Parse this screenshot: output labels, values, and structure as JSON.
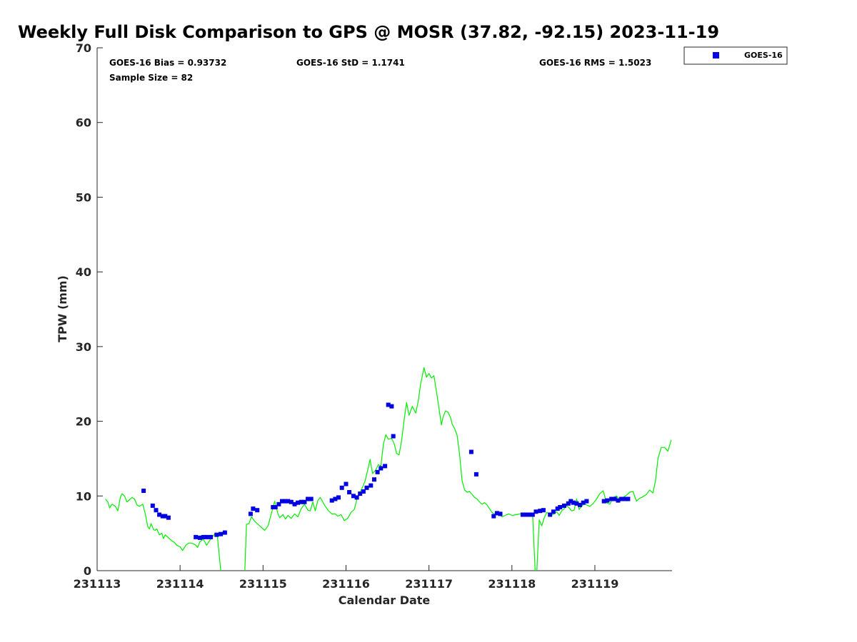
{
  "chart_data": {
    "type": "scatter",
    "title": "Weekly Full Disk Comparison to GPS @ MOSR (37.82, -92.15) 2023-11-19",
    "xlabel": "Calendar Date",
    "ylabel": "TPW (mm)",
    "xlim": [
      0,
      6.93
    ],
    "ylim": [
      0,
      70
    ],
    "x_ticks": [
      0,
      1,
      2,
      3,
      4,
      5,
      6
    ],
    "x_tick_labels": [
      "231113",
      "231114",
      "231115",
      "231116",
      "231117",
      "231118",
      "231119"
    ],
    "y_ticks": [
      0,
      10,
      20,
      30,
      40,
      50,
      60,
      70
    ],
    "y_tick_labels": [
      "0",
      "10",
      "20",
      "30",
      "40",
      "50",
      "60",
      "70"
    ],
    "stats": {
      "bias": "GOES-16 Bias = 0.93732",
      "std": "GOES-16 StD = 1.1741",
      "rms": "GOES-16 RMS = 1.5023",
      "sample": "Sample Size = 82"
    },
    "legend": {
      "label": "GOES-16",
      "position": "top-right-outside"
    },
    "series": [
      {
        "name": "GPS",
        "kind": "line",
        "color": "#00ee00",
        "segments": [
          {
            "x": [
              0.1,
              0.13,
              0.15,
              0.18,
              0.22,
              0.25,
              0.28,
              0.3,
              0.33,
              0.36,
              0.39,
              0.42,
              0.45,
              0.48,
              0.51,
              0.55,
              0.58,
              0.61,
              0.63,
              0.65,
              0.68,
              0.7,
              0.72,
              0.75,
              0.78,
              0.8,
              0.82,
              0.84,
              0.87,
              0.9,
              0.93,
              0.96,
              1.0,
              1.03,
              1.07,
              1.1,
              1.13,
              1.16,
              1.19,
              1.21,
              1.24,
              1.28,
              1.32,
              1.36,
              1.38,
              1.42,
              1.45,
              1.49,
              1.53,
              1.55,
              1.58
            ],
            "y": [
              9.6,
              9.2,
              8.4,
              8.9,
              8.6,
              8.0,
              9.8,
              10.3,
              10.0,
              9.2,
              9.5,
              9.8,
              9.6,
              8.8,
              8.6,
              8.9,
              7.6,
              5.9,
              5.6,
              6.3,
              5.5,
              5.4,
              5.6,
              4.8,
              5.0,
              4.3,
              4.8,
              4.6,
              4.3,
              4.0,
              3.8,
              3.4,
              3.2,
              2.7,
              3.4,
              3.7,
              3.7,
              3.6,
              3.4,
              3.1,
              3.9,
              4.2,
              3.4,
              4.1,
              4.4,
              4.9,
              4.6,
              0.0,
              null,
              null,
              null
            ]
          },
          {
            "x": [
              1.78,
              1.8,
              1.83,
              1.86,
              1.9,
              1.94,
              1.98,
              2.02,
              2.06,
              2.1,
              2.14,
              2.18,
              2.2,
              2.24,
              2.27,
              2.3,
              2.34,
              2.38,
              2.42,
              2.46,
              2.5,
              2.54,
              2.57,
              2.6,
              2.63,
              2.66,
              2.69,
              2.72,
              2.75,
              2.79,
              2.83,
              2.87,
              2.9,
              2.94,
              2.98,
              3.02,
              3.06,
              3.1,
              3.13,
              3.17,
              3.2,
              3.23,
              3.26,
              3.29,
              3.32,
              3.36,
              3.39,
              3.42,
              3.45,
              3.48,
              3.51,
              3.55,
              3.58,
              3.61,
              3.64,
              3.67,
              3.7,
              3.73,
              3.76,
              3.8,
              3.84,
              3.87,
              3.9,
              3.94,
              3.97,
              4.0,
              4.03,
              4.06,
              4.09,
              4.12,
              4.15,
              4.17,
              4.2,
              4.23,
              4.26,
              4.28,
              4.31,
              4.34,
              4.37,
              4.4,
              4.43,
              4.46,
              4.49,
              4.52,
              4.55,
              4.58,
              4.61,
              4.64,
              4.67,
              4.7,
              4.73,
              4.76,
              4.8,
              4.84,
              4.88,
              4.92,
              4.96,
              5.0,
              5.05,
              5.1,
              5.15,
              5.2,
              5.25,
              5.28
            ],
            "y": [
              0.0,
              6.2,
              6.3,
              7.2,
              6.6,
              6.2,
              5.8,
              5.4,
              6.0,
              7.6,
              9.3,
              7.6,
              7.1,
              7.5,
              6.9,
              7.4,
              7.0,
              7.6,
              7.2,
              8.3,
              8.9,
              8.1,
              8.0,
              9.2,
              8.0,
              9.4,
              9.8,
              9.2,
              8.6,
              8.0,
              7.6,
              7.6,
              7.3,
              7.5,
              6.7,
              7.0,
              7.8,
              8.2,
              9.5,
              10.5,
              11.2,
              12.0,
              13.4,
              14.9,
              13.0,
              13.5,
              14.2,
              14.0,
              16.9,
              18.2,
              17.6,
              17.7,
              17.0,
              15.7,
              15.5,
              17.4,
              20.1,
              22.5,
              20.8,
              22.0,
              21.1,
              22.6,
              25.0,
              27.2,
              25.9,
              26.4,
              25.8,
              26.1,
              24.0,
              21.8,
              19.5,
              20.6,
              21.4,
              21.2,
              20.5,
              19.6,
              19.0,
              18.1,
              15.5,
              12.0,
              10.8,
              10.5,
              10.6,
              10.2,
              9.8,
              9.6,
              9.2,
              8.9,
              9.1,
              8.8,
              8.3,
              7.8,
              7.5,
              7.6,
              7.2,
              7.4,
              7.6,
              7.4,
              7.5,
              7.6,
              7.4,
              7.3,
              7.5,
              0.0
            ]
          },
          {
            "x": [
              5.3,
              5.33,
              5.36,
              5.39,
              5.42,
              5.45,
              5.48,
              5.51,
              5.54,
              5.57,
              5.6,
              5.63,
              5.66,
              5.69,
              5.72,
              5.75,
              5.78,
              5.81,
              5.84,
              5.87,
              5.9,
              5.94,
              5.98,
              6.02,
              6.06,
              6.1,
              6.14,
              6.18,
              6.22,
              6.26,
              6.3,
              6.34,
              6.38,
              6.42,
              6.46,
              6.5,
              6.54,
              6.58,
              6.62,
              6.66,
              6.7,
              6.73,
              6.76,
              6.8,
              6.84,
              6.88,
              6.92
            ],
            "y": [
              0.0,
              6.8,
              6.0,
              7.1,
              7.8,
              7.6,
              7.5,
              7.6,
              7.9,
              7.4,
              8.0,
              8.3,
              8.7,
              8.4,
              8.0,
              8.1,
              9.6,
              8.2,
              8.6,
              9.0,
              8.8,
              8.6,
              9.0,
              9.6,
              10.3,
              10.7,
              9.1,
              8.9,
              9.8,
              10.0,
              9.5,
              9.8,
              10.1,
              10.5,
              10.6,
              9.3,
              9.7,
              9.9,
              10.2,
              10.8,
              10.4,
              12.0,
              15.0,
              16.5,
              16.5,
              16.0,
              17.5
            ]
          }
        ]
      },
      {
        "name": "GOES-16",
        "kind": "scatter",
        "color": "#0000e0",
        "x": [
          0.56,
          0.67,
          0.71,
          0.75,
          0.79,
          0.82,
          0.86,
          1.19,
          1.24,
          1.28,
          1.32,
          1.37,
          1.44,
          1.49,
          1.54,
          1.85,
          1.88,
          1.93,
          2.12,
          2.15,
          2.19,
          2.23,
          2.26,
          2.3,
          2.34,
          2.38,
          2.42,
          2.46,
          2.5,
          2.54,
          2.58,
          2.83,
          2.87,
          2.91,
          2.95,
          3.0,
          3.04,
          3.09,
          3.13,
          3.17,
          3.21,
          3.25,
          3.3,
          3.34,
          3.38,
          3.42,
          3.47,
          3.51,
          3.55,
          3.57,
          4.51,
          4.57,
          4.78,
          4.82,
          4.86,
          5.13,
          5.17,
          5.22,
          5.25,
          5.29,
          5.34,
          5.38,
          5.46,
          5.5,
          5.55,
          5.58,
          5.63,
          5.68,
          5.71,
          5.74,
          5.78,
          5.82,
          5.86,
          5.9,
          6.11,
          6.15,
          6.2,
          6.24,
          6.28,
          6.32,
          6.36,
          6.4
        ],
        "y": [
          10.7,
          8.7,
          8.1,
          7.5,
          7.3,
          7.3,
          7.1,
          4.5,
          4.4,
          4.5,
          4.5,
          4.5,
          4.8,
          4.9,
          5.1,
          7.6,
          8.3,
          8.1,
          8.5,
          8.5,
          8.9,
          9.3,
          9.3,
          9.3,
          9.2,
          8.9,
          9.1,
          9.2,
          9.2,
          9.6,
          9.6,
          9.4,
          9.6,
          9.8,
          11.1,
          11.6,
          10.5,
          10.0,
          9.8,
          10.3,
          10.6,
          11.1,
          11.4,
          12.2,
          13.2,
          13.7,
          14.0,
          22.2,
          22.0,
          18.0,
          15.9,
          12.9,
          7.3,
          7.7,
          7.6,
          7.5,
          7.5,
          7.5,
          7.5,
          7.9,
          8.0,
          8.1,
          7.5,
          7.9,
          8.3,
          8.5,
          8.7,
          9.0,
          9.3,
          9.1,
          9.0,
          8.8,
          9.1,
          9.3,
          9.3,
          9.4,
          9.6,
          9.6,
          9.4,
          9.6,
          9.6,
          9.6
        ]
      }
    ]
  }
}
